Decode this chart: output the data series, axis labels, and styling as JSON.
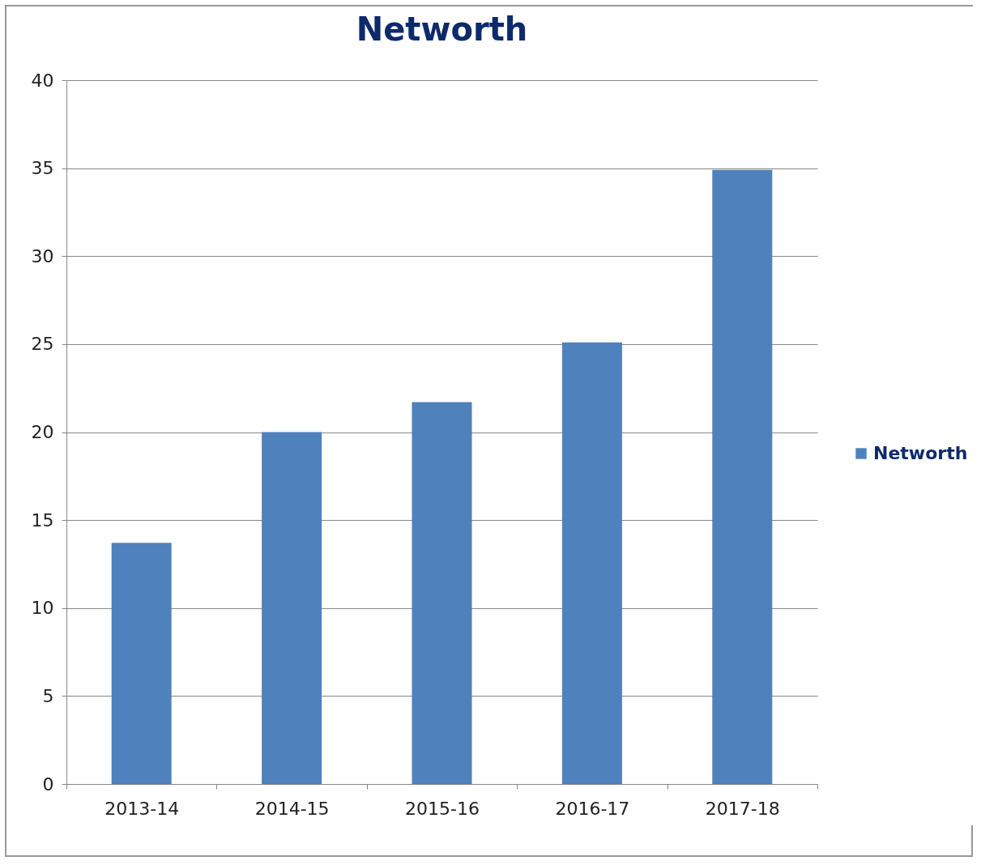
{
  "chart_data": {
    "type": "bar",
    "title": "Networth",
    "categories": [
      "2013-14",
      "2014-15",
      "2015-16",
      "2016-17",
      "2017-18"
    ],
    "series": [
      {
        "name": "Networth",
        "color": "#4f81bd",
        "values": [
          13.7,
          20.0,
          21.7,
          25.1,
          34.9
        ]
      }
    ],
    "ylim": [
      0,
      40
    ],
    "yticks": [
      0,
      5,
      10,
      15,
      20,
      25,
      30,
      35,
      40
    ],
    "grid": "y",
    "legend": "right"
  }
}
